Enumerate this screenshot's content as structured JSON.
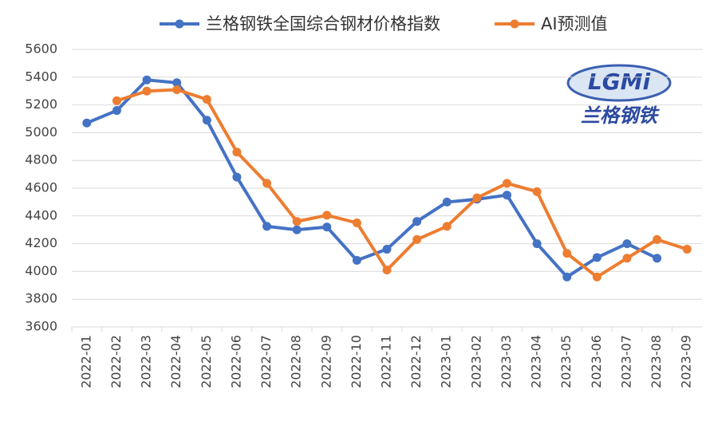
{
  "chart_data": {
    "type": "line",
    "categories": [
      "2022-01",
      "2022-02",
      "2022-03",
      "2022-04",
      "2022-05",
      "2022-06",
      "2022-07",
      "2022-08",
      "2022-09",
      "2022-10",
      "2022-11",
      "2022-12",
      "2023-01",
      "2023-02",
      "2023-03",
      "2023-04",
      "2023-05",
      "2023-06",
      "2023-07",
      "2023-08",
      "2023-09"
    ],
    "series": [
      {
        "name": "兰格钢铁全国综合钢材价格指数",
        "color": "#4472c4",
        "values": [
          5070,
          5160,
          5380,
          5360,
          5090,
          4680,
          4325,
          4300,
          4320,
          4080,
          4160,
          4360,
          4500,
          4520,
          4550,
          4200,
          3960,
          4100,
          4200,
          4095,
          null
        ]
      },
      {
        "name": "AI预测值",
        "color": "#ed7d31",
        "values": [
          null,
          5230,
          5300,
          5310,
          5240,
          4860,
          4635,
          4360,
          4405,
          4350,
          4010,
          4230,
          4325,
          4530,
          4635,
          4575,
          4130,
          3960,
          4095,
          4230,
          4160
        ]
      }
    ],
    "ylim": [
      3600,
      5600
    ],
    "yticks": [
      3600,
      3800,
      4000,
      4200,
      4400,
      4600,
      4800,
      5000,
      5200,
      5400,
      5600
    ],
    "grid": true,
    "legend": "top",
    "logo": {
      "text": "LGMi",
      "subtitle": "兰格钢铁"
    }
  }
}
